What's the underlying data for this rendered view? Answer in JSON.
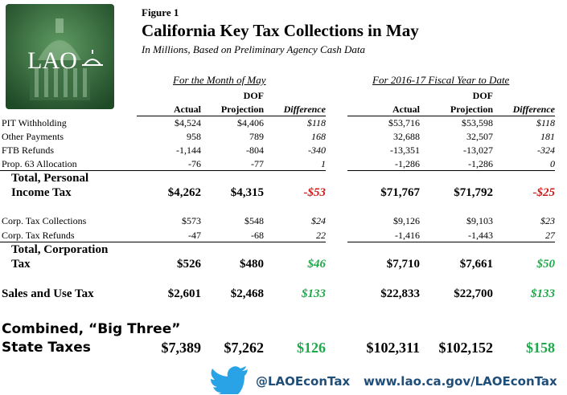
{
  "logo": "LAO",
  "header": {
    "figure": "Figure 1",
    "title": "California Key Tax Collections in May",
    "subtitle": "In Millions, Based on Preliminary Agency Cash Data"
  },
  "table": {
    "groups": [
      "For the Month of May",
      "For 2016-17 Fiscal Year to Date"
    ],
    "dof": "DOF",
    "columns": [
      "Actual",
      "Projection",
      "Difference"
    ],
    "rows": [
      {
        "label": [
          "PIT Withholding"
        ],
        "values": [
          "$4,524",
          "$4,406",
          "$118",
          "$53,716",
          "$53,598",
          "$118"
        ]
      },
      {
        "label": [
          "Other Payments"
        ],
        "values": [
          "958",
          "789",
          "168",
          "32,688",
          "32,507",
          "181"
        ]
      },
      {
        "label": [
          "FTB Refunds"
        ],
        "values": [
          "-1,144",
          "-804",
          "-340",
          "-13,351",
          "-13,027",
          "-324"
        ]
      },
      {
        "label": [
          "Prop. 63 Allocation"
        ],
        "values": [
          "-76",
          "-77",
          "1",
          "-1,286",
          "-1,286",
          "0"
        ]
      },
      {
        "label": [
          "Total, Personal",
          "Income Tax"
        ],
        "values": [
          "$4,262",
          "$4,315",
          "-$53",
          "$71,767",
          "$71,792",
          "-$25"
        ]
      },
      {
        "label": [
          "Corp. Tax Collections"
        ],
        "values": [
          "$573",
          "$548",
          "$24",
          "$9,126",
          "$9,103",
          "$23"
        ]
      },
      {
        "label": [
          "Corp. Tax Refunds"
        ],
        "values": [
          "-47",
          "-68",
          "22",
          "-1,416",
          "-1,443",
          "27"
        ]
      },
      {
        "label": [
          "Total, Corporation",
          "Tax"
        ],
        "values": [
          "$526",
          "$480",
          "$46",
          "$7,710",
          "$7,661",
          "$50"
        ]
      },
      {
        "label": [
          "Sales and Use Tax"
        ],
        "values": [
          "$2,601",
          "$2,468",
          "$133",
          "$22,833",
          "$22,700",
          "$133"
        ]
      },
      {
        "label": [
          "Combined, “Big Three”",
          "State Taxes"
        ],
        "values": [
          "$7,389",
          "$7,262",
          "$126",
          "$102,311",
          "$102,152",
          "$158"
        ]
      }
    ]
  },
  "footer": {
    "handle": "@LAOEconTax",
    "url": "www.lao.ca.gov/LAOEconTax"
  }
}
